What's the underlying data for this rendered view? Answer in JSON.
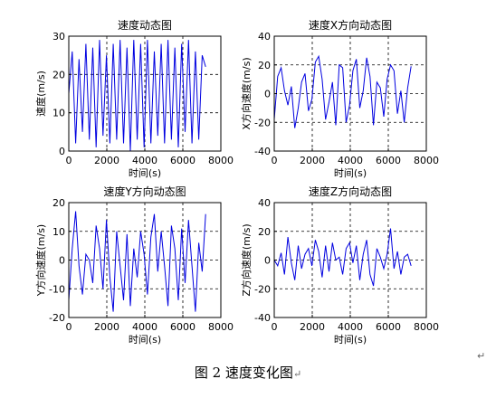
{
  "caption": "图 2  速度变化图",
  "caption_mark": "↵",
  "end_mark": "↵",
  "chart_data": [
    {
      "type": "line",
      "title": "速度动态图",
      "xlabel": "时间(s)",
      "ylabel": "速度(m/s)",
      "xlim": [
        0,
        8000
      ],
      "ylim": [
        0,
        30
      ],
      "xticks": [
        0,
        2000,
        4000,
        6000,
        8000
      ],
      "yticks": [
        0,
        10,
        20,
        30
      ],
      "grid": true,
      "color": "#0000e0",
      "series": [
        {
          "x": [
            0,
            180,
            360,
            540,
            720,
            900,
            1080,
            1260,
            1440,
            1620,
            1800,
            1980,
            2160,
            2340,
            2520,
            2700,
            2880,
            3060,
            3240,
            3420,
            3600,
            3780,
            3960,
            4140,
            4320,
            4500,
            4680,
            4860,
            5040,
            5220,
            5400,
            5580,
            5760,
            5940,
            6120,
            6300,
            6480,
            6660,
            6840,
            7020,
            7200
          ],
          "y": [
            15,
            26,
            2,
            24,
            5,
            28,
            3,
            27,
            1,
            29,
            4,
            25,
            2,
            28,
            3,
            29,
            2,
            27,
            0,
            29,
            3,
            28,
            1,
            29,
            2,
            26,
            4,
            28,
            2,
            29,
            3,
            27,
            1,
            28,
            5,
            29,
            2,
            26,
            3,
            25,
            22
          ]
        }
      ]
    },
    {
      "type": "line",
      "title": "速度X方向动态图",
      "xlabel": "时间(s)",
      "ylabel": "X方向速度(m/s)",
      "xlim": [
        0,
        8000
      ],
      "ylim": [
        -40,
        40
      ],
      "xticks": [
        0,
        2000,
        4000,
        6000,
        8000
      ],
      "yticks": [
        -40,
        -20,
        0,
        20,
        40
      ],
      "grid": true,
      "color": "#0000e0",
      "series": [
        {
          "x": [
            0,
            180,
            360,
            540,
            720,
            900,
            1080,
            1260,
            1440,
            1620,
            1800,
            1980,
            2160,
            2340,
            2520,
            2700,
            2880,
            3060,
            3240,
            3420,
            3600,
            3780,
            3960,
            4140,
            4320,
            4500,
            4680,
            4860,
            5040,
            5220,
            5400,
            5580,
            5760,
            5940,
            6120,
            6300,
            6480,
            6660,
            6840,
            7020,
            7200
          ],
          "y": [
            -18,
            12,
            18,
            2,
            -8,
            5,
            -24,
            -10,
            8,
            14,
            -12,
            -4,
            22,
            26,
            10,
            -18,
            -6,
            8,
            -22,
            20,
            18,
            -20,
            -8,
            16,
            24,
            -10,
            2,
            25,
            12,
            -22,
            8,
            4,
            -16,
            10,
            20,
            16,
            -14,
            2,
            -20,
            4,
            19
          ]
        }
      ]
    },
    {
      "type": "line",
      "title": "速度Y方向动态图",
      "xlabel": "时间(s)",
      "ylabel": "Y方向速度(m/s)",
      "xlim": [
        0,
        8000
      ],
      "ylim": [
        -20,
        20
      ],
      "xticks": [
        0,
        2000,
        4000,
        6000,
        8000
      ],
      "yticks": [
        -20,
        -10,
        0,
        10,
        20
      ],
      "grid": true,
      "color": "#0000e0",
      "series": [
        {
          "x": [
            0,
            180,
            360,
            540,
            720,
            900,
            1080,
            1260,
            1440,
            1620,
            1800,
            1980,
            2160,
            2340,
            2520,
            2700,
            2880,
            3060,
            3240,
            3420,
            3600,
            3780,
            3960,
            4140,
            4320,
            4500,
            4680,
            4860,
            5040,
            5220,
            5400,
            5580,
            5760,
            5940,
            6120,
            6300,
            6480,
            6660,
            6840,
            7020,
            7200
          ],
          "y": [
            -14,
            4,
            17,
            -2,
            -12,
            2,
            0,
            -8,
            12,
            4,
            -10,
            14,
            -6,
            -18,
            10,
            -2,
            -14,
            9,
            -16,
            4,
            -6,
            10,
            2,
            -12,
            8,
            16,
            -4,
            10,
            -2,
            -16,
            12,
            4,
            -14,
            11,
            -8,
            14,
            -2,
            -18,
            6,
            -4,
            16
          ]
        }
      ]
    },
    {
      "type": "line",
      "title": "速度Z方向动态图",
      "xlabel": "时间(s)",
      "ylabel": "Z方向速度(m/s)",
      "xlim": [
        0,
        8000
      ],
      "ylim": [
        -40,
        40
      ],
      "xticks": [
        0,
        2000,
        4000,
        6000,
        8000
      ],
      "yticks": [
        -40,
        -20,
        0,
        20,
        40
      ],
      "grid": true,
      "color": "#0000e0",
      "series": [
        {
          "x": [
            0,
            180,
            360,
            540,
            720,
            900,
            1080,
            1260,
            1440,
            1620,
            1800,
            1980,
            2160,
            2340,
            2520,
            2700,
            2880,
            3060,
            3240,
            3420,
            3600,
            3780,
            3960,
            4140,
            4320,
            4500,
            4680,
            4860,
            5040,
            5220,
            5400,
            5580,
            5760,
            5940,
            6120,
            6300,
            6480,
            6660,
            6840,
            7020,
            7200
          ],
          "y": [
            0,
            -4,
            5,
            -10,
            16,
            -2,
            -14,
            10,
            -6,
            4,
            8,
            -4,
            14,
            6,
            -12,
            10,
            -8,
            12,
            0,
            2,
            -10,
            8,
            12,
            -2,
            10,
            -14,
            4,
            14,
            -10,
            -18,
            8,
            2,
            -6,
            4,
            22,
            -6,
            6,
            -10,
            2,
            4,
            -4
          ]
        }
      ]
    }
  ]
}
